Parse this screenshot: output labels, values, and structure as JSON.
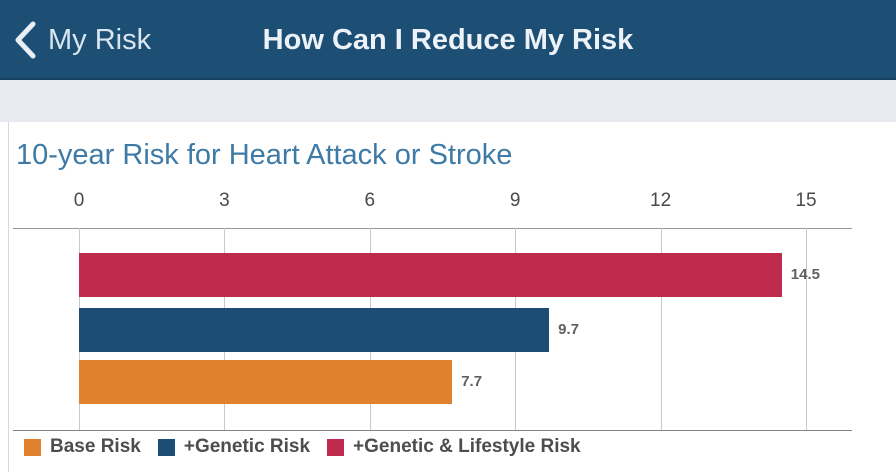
{
  "nav": {
    "back_label": "My Risk",
    "title": "How Can I Reduce My Risk",
    "background": "#1d4e74"
  },
  "chart_data": {
    "type": "bar",
    "orientation": "horizontal",
    "title": "10-year Risk for Heart Attack or Stroke",
    "title_color": "#3e7aa6",
    "xlabel": "",
    "ylabel": "",
    "xlim": [
      0,
      15
    ],
    "x_ticks": [
      0,
      3,
      6,
      9,
      12,
      15
    ],
    "axis_position": "top",
    "grid": true,
    "bars": [
      {
        "name": "+Genetic & Lifestyle Risk",
        "value": 14.5,
        "color": "#bf2b4c"
      },
      {
        "name": "+Genetic Risk",
        "value": 9.7,
        "color": "#1d4d74"
      },
      {
        "name": "Base Risk",
        "value": 7.7,
        "color": "#e0812d"
      }
    ],
    "value_labels": [
      "14.5",
      "9.7",
      "7.7"
    ],
    "legend": [
      {
        "label": "Base Risk",
        "color": "#e0812d"
      },
      {
        "label": "+Genetic Risk",
        "color": "#1d4d74"
      },
      {
        "label": "+Genetic & Lifestyle Risk",
        "color": "#bf2b4c"
      }
    ],
    "legend_position": "bottom"
  }
}
